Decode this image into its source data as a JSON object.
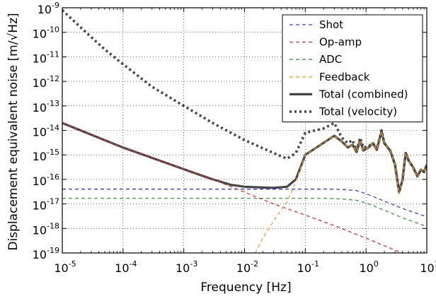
{
  "chart_data": {
    "type": "line",
    "title": "",
    "xlabel": "Frequency [Hz]",
    "ylabel": "Displacement equivalent noise [m/√Hz]",
    "xscale": "log",
    "yscale": "log",
    "xlim": [
      1e-05,
      10
    ],
    "ylim": [
      1e-19,
      1e-09
    ],
    "grid": true,
    "legend_position": "top-right",
    "x_ticks": [
      {
        "base": "10",
        "exp": "-5",
        "value": 1e-05
      },
      {
        "base": "10",
        "exp": "-4",
        "value": 0.0001
      },
      {
        "base": "10",
        "exp": "-3",
        "value": 0.001
      },
      {
        "base": "10",
        "exp": "-2",
        "value": 0.01
      },
      {
        "base": "10",
        "exp": "-1",
        "value": 0.1
      },
      {
        "base": "10",
        "exp": "0",
        "value": 1
      },
      {
        "base": "10",
        "exp": "1",
        "value": 10
      }
    ],
    "y_ticks": [
      {
        "base": "10",
        "exp": "-19",
        "value": 1e-19
      },
      {
        "base": "10",
        "exp": "-18",
        "value": 1e-18
      },
      {
        "base": "10",
        "exp": "-17",
        "value": 1e-17
      },
      {
        "base": "10",
        "exp": "-16",
        "value": 1e-16
      },
      {
        "base": "10",
        "exp": "-15",
        "value": 1e-15
      },
      {
        "base": "10",
        "exp": "-14",
        "value": 1e-14
      },
      {
        "base": "10",
        "exp": "-13",
        "value": 1e-13
      },
      {
        "base": "10",
        "exp": "-12",
        "value": 1e-12
      },
      {
        "base": "10",
        "exp": "-11",
        "value": 1e-11
      },
      {
        "base": "10",
        "exp": "-10",
        "value": 1e-10
      },
      {
        "base": "10",
        "exp": "-9",
        "value": 1e-09
      }
    ],
    "series": [
      {
        "name": "Shot",
        "color": "#3a3ae0",
        "style": "dashed",
        "points": [
          [
            1e-05,
            4e-17
          ],
          [
            0.001,
            4e-17
          ],
          [
            0.05,
            4e-17
          ],
          [
            0.2,
            4e-17
          ],
          [
            0.4,
            3.9e-17
          ],
          [
            0.7,
            3.5e-17
          ],
          [
            1,
            2.6e-17
          ],
          [
            2,
            1.3e-17
          ],
          [
            4,
            6.5e-18
          ],
          [
            10,
            3e-18
          ]
        ]
      },
      {
        "name": "Op-amp",
        "color": "#e03030",
        "style": "dashed",
        "points": [
          [
            1e-05,
            2e-14
          ],
          [
            0.0001,
            2e-15
          ],
          [
            0.001,
            2.6e-16
          ],
          [
            0.003,
            1e-16
          ],
          [
            0.006,
            5e-17
          ],
          [
            0.01,
            3e-17
          ],
          [
            0.03,
            1e-17
          ],
          [
            0.1,
            3.5e-18
          ],
          [
            0.3,
            1.3e-18
          ],
          [
            1,
            4e-19
          ],
          [
            3,
            1.3e-19
          ],
          [
            5,
            8e-20
          ]
        ]
      },
      {
        "name": "ADC",
        "color": "#3a9a3a",
        "style": "dashed",
        "points": [
          [
            1e-05,
            1.7e-17
          ],
          [
            0.001,
            1.7e-17
          ],
          [
            0.05,
            1.7e-17
          ],
          [
            0.2,
            1.7e-17
          ],
          [
            0.4,
            1.6e-17
          ],
          [
            0.7,
            1.4e-17
          ],
          [
            1,
            1.1e-17
          ],
          [
            2,
            5.5e-18
          ],
          [
            4,
            2.7e-18
          ],
          [
            10,
            1.2e-18
          ]
        ]
      },
      {
        "name": "Feedback",
        "color": "#f0a020",
        "style": "dashed",
        "points": [
          [
            0.015,
            1e-19
          ],
          [
            0.02,
            4e-19
          ],
          [
            0.03,
            2e-18
          ],
          [
            0.05,
            1.2e-17
          ],
          [
            0.07,
            8e-17
          ],
          [
            0.1,
            1e-15
          ],
          [
            0.3,
            6e-15
          ],
          [
            0.4,
            3.5e-15
          ],
          [
            0.5,
            2e-15
          ],
          [
            0.6,
            2.6e-15
          ],
          [
            0.7,
            1.3e-15
          ],
          [
            0.8,
            4e-15
          ],
          [
            0.9,
            1.5e-15
          ],
          [
            1.1,
            2e-15
          ],
          [
            1.3,
            3e-15
          ],
          [
            1.5,
            1.6e-15
          ],
          [
            1.8,
            9e-15
          ],
          [
            2,
            3e-15
          ],
          [
            2.5,
            1.5e-15
          ],
          [
            3,
            4e-16
          ],
          [
            3.5,
            2.5e-17
          ],
          [
            4,
            1e-16
          ],
          [
            4.5,
            1.2e-15
          ],
          [
            5,
            6e-16
          ],
          [
            6,
            3e-16
          ],
          [
            7,
            1.2e-16
          ],
          [
            8,
            2.5e-16
          ],
          [
            9,
            2e-16
          ],
          [
            10,
            4e-16
          ]
        ]
      },
      {
        "name": "Total (combined)",
        "color": "#454545",
        "style": "solid",
        "points": [
          [
            1e-05,
            2e-14
          ],
          [
            0.0001,
            2e-15
          ],
          [
            0.001,
            2.6e-16
          ],
          [
            0.003,
            1e-16
          ],
          [
            0.006,
            6e-17
          ],
          [
            0.01,
            5e-17
          ],
          [
            0.03,
            4.5e-17
          ],
          [
            0.05,
            5e-17
          ],
          [
            0.07,
            1e-16
          ],
          [
            0.1,
            1e-15
          ],
          [
            0.3,
            6e-15
          ],
          [
            0.4,
            3.5e-15
          ],
          [
            0.5,
            2e-15
          ],
          [
            0.6,
            2.6e-15
          ],
          [
            0.7,
            1.3e-15
          ],
          [
            0.8,
            4e-15
          ],
          [
            0.9,
            1.5e-15
          ],
          [
            1.1,
            2e-15
          ],
          [
            1.3,
            3e-15
          ],
          [
            1.5,
            1.6e-15
          ],
          [
            1.8,
            9e-15
          ],
          [
            2,
            3e-15
          ],
          [
            2.5,
            1.5e-15
          ],
          [
            3,
            4e-16
          ],
          [
            3.5,
            3e-17
          ],
          [
            4,
            1e-16
          ],
          [
            4.5,
            1.2e-15
          ],
          [
            5,
            6e-16
          ],
          [
            6,
            3e-16
          ],
          [
            7,
            1.3e-16
          ],
          [
            8,
            2.5e-16
          ],
          [
            9,
            2e-16
          ],
          [
            10,
            4e-16
          ]
        ]
      },
      {
        "name": "Total (velocity)",
        "color": "#454545",
        "style": "dotted",
        "points": [
          [
            1e-05,
            8e-10
          ],
          [
            2e-05,
            1.6e-10
          ],
          [
            5e-05,
            2e-11
          ],
          [
            0.0001,
            5e-12
          ],
          [
            0.0003,
            6e-13
          ],
          [
            0.001,
            1e-13
          ],
          [
            0.003,
            2e-14
          ],
          [
            0.01,
            4e-15
          ],
          [
            0.03,
            1.2e-15
          ],
          [
            0.05,
            7e-16
          ],
          [
            0.07,
            1.2e-15
          ],
          [
            0.1,
            8e-15
          ],
          [
            0.2,
            1.2e-14
          ],
          [
            0.3,
            2e-14
          ],
          [
            0.4,
            5e-15
          ],
          [
            0.5,
            3e-15
          ],
          [
            0.6,
            4e-15
          ],
          [
            0.7,
            1.5e-15
          ],
          [
            0.8,
            5e-15
          ],
          [
            0.9,
            2e-15
          ],
          [
            1.1,
            2.2e-15
          ],
          [
            1.3,
            3e-15
          ],
          [
            1.5,
            1.7e-15
          ],
          [
            1.8,
            1e-14
          ],
          [
            2,
            3e-15
          ],
          [
            2.5,
            1.5e-15
          ],
          [
            3,
            4e-16
          ],
          [
            3.5,
            3e-17
          ],
          [
            4,
            1e-16
          ],
          [
            4.5,
            1.2e-15
          ],
          [
            5,
            6e-16
          ],
          [
            6,
            3e-16
          ],
          [
            7,
            1.3e-16
          ],
          [
            8,
            2.5e-16
          ],
          [
            9,
            2e-16
          ],
          [
            10,
            4e-16
          ]
        ]
      }
    ]
  }
}
